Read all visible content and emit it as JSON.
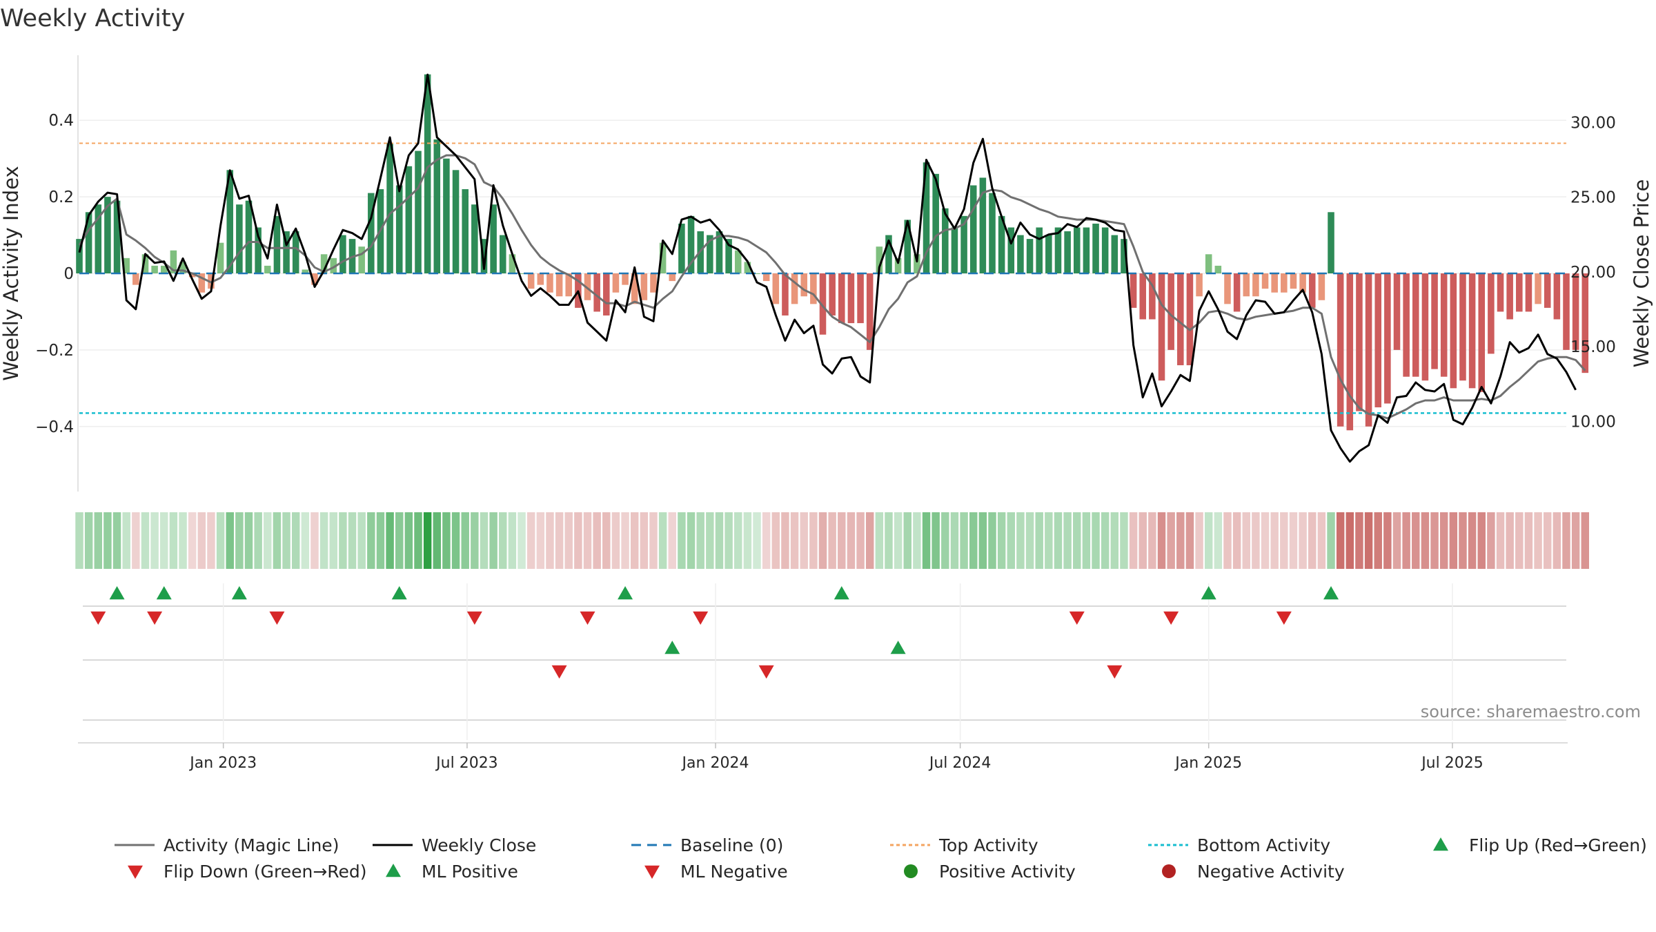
{
  "title": "Weekly Activity",
  "source": "source: sharemaestro.com",
  "colors": {
    "pos_strong": "#2e8b57",
    "pos_light": "#7fbf7f",
    "neg_strong": "#cd5c5c",
    "neg_light": "#e9967a",
    "magic_line": "#707070",
    "close_line": "#000000",
    "baseline": "#1f77b4",
    "top_line": "#f4a460",
    "bottom_line": "#17becf",
    "flip_up": "#1e9e4a",
    "flip_down": "#d62728",
    "pos_dot": "#228b22",
    "neg_dot": "#b22222"
  },
  "chart_data": {
    "type": "bar",
    "title": "Weekly Activity",
    "ylabel": "Weekly Activity Index",
    "y2label": "Weekly Close Price",
    "ylim": [
      -0.57,
      0.57
    ],
    "y2lim": [
      5.3,
      34.5
    ],
    "yticks": [
      -0.4,
      -0.2,
      0,
      0.2,
      0.4
    ],
    "yticklabels": [
      "−0.4",
      "−0.2",
      "0",
      "0.2",
      "0.4"
    ],
    "y2ticks": [
      10,
      15,
      20,
      25,
      30
    ],
    "y2ticklabels": [
      "10.00",
      "15.00",
      "20.00",
      "25.00",
      "30.00"
    ],
    "start_date": "2022-09-26",
    "x_range_weeks": [
      0,
      158
    ],
    "xticks": [
      {
        "label": "Jan 2023",
        "week": 15.3
      },
      {
        "label": "Jul 2023",
        "week": 41.2
      },
      {
        "label": "Jan 2024",
        "week": 67.6
      },
      {
        "label": "Jul 2024",
        "week": 93.6
      },
      {
        "label": "Jan 2025",
        "week": 120
      },
      {
        "label": "Jul 2025",
        "week": 145.9
      }
    ],
    "top_activity": 0.34,
    "bottom_activity": -0.365,
    "activity": [
      0.09,
      0.16,
      0.18,
      0.2,
      0.19,
      0.04,
      -0.03,
      0.05,
      0.02,
      0.02,
      0.06,
      0.03,
      -0.01,
      -0.05,
      -0.04,
      0.08,
      0.27,
      0.18,
      0.19,
      0.12,
      0.02,
      0.15,
      0.11,
      0.11,
      0.01,
      -0.03,
      0.05,
      0.04,
      0.1,
      0.09,
      0.07,
      0.21,
      0.22,
      0.34,
      0.23,
      0.28,
      0.32,
      0.52,
      0.35,
      0.3,
      0.27,
      0.22,
      0.18,
      0.09,
      0.18,
      0.1,
      0.05,
      0.0,
      -0.04,
      -0.03,
      -0.05,
      -0.06,
      -0.06,
      -0.09,
      -0.07,
      -0.1,
      -0.11,
      -0.05,
      -0.03,
      -0.08,
      -0.07,
      -0.05,
      0.08,
      -0.02,
      0.13,
      0.15,
      0.11,
      0.1,
      0.11,
      0.09,
      0.06,
      0.03,
      0.0,
      -0.02,
      -0.08,
      -0.11,
      -0.08,
      -0.06,
      -0.08,
      -0.16,
      -0.11,
      -0.13,
      -0.13,
      -0.13,
      -0.2,
      0.07,
      0.1,
      0.04,
      0.14,
      0.05,
      0.29,
      0.26,
      0.17,
      0.12,
      0.15,
      0.23,
      0.25,
      0.21,
      0.15,
      0.12,
      0.1,
      0.09,
      0.12,
      0.1,
      0.12,
      0.11,
      0.12,
      0.12,
      0.13,
      0.12,
      0.1,
      0.09,
      -0.09,
      -0.12,
      -0.12,
      -0.28,
      -0.2,
      -0.24,
      -0.24,
      -0.06,
      0.05,
      0.02,
      -0.08,
      -0.1,
      -0.06,
      -0.06,
      -0.04,
      -0.05,
      -0.05,
      -0.04,
      -0.05,
      -0.09,
      -0.07,
      0.16,
      -0.4,
      -0.41,
      -0.36,
      -0.4,
      -0.35,
      -0.34,
      -0.2,
      -0.27,
      -0.27,
      -0.28,
      -0.25,
      -0.27,
      -0.3,
      -0.28,
      -0.3,
      -0.31,
      -0.21,
      -0.1,
      -0.12,
      -0.1,
      -0.1,
      -0.08,
      -0.09,
      -0.12,
      -0.2,
      -0.2,
      -0.26
    ],
    "weekly_close": [
      21.3,
      23.8,
      24.7,
      25.3,
      25.2,
      18.1,
      17.5,
      21.2,
      20.6,
      20.7,
      19.4,
      20.9,
      19.5,
      18.2,
      18.7,
      23.1,
      26.8,
      24.9,
      25.1,
      22.4,
      20.9,
      24.5,
      21.8,
      22.9,
      21.2,
      19.0,
      20.1,
      21.5,
      22.8,
      22.6,
      22.2,
      23.6,
      26.3,
      29.0,
      25.4,
      27.8,
      28.6,
      33.2,
      29.0,
      28.4,
      27.8,
      27.0,
      26.2,
      20.2,
      25.8,
      23.1,
      21.2,
      19.4,
      18.4,
      18.9,
      18.4,
      17.8,
      17.8,
      18.7,
      16.6,
      16.0,
      15.4,
      18.1,
      17.3,
      20.3,
      17.0,
      16.7,
      22.1,
      21.2,
      23.5,
      23.7,
      23.3,
      23.5,
      22.8,
      21.8,
      21.5,
      20.7,
      19.3,
      19.0,
      17.1,
      15.4,
      16.8,
      15.9,
      16.4,
      13.8,
      13.2,
      14.2,
      14.3,
      13.0,
      12.6,
      20.3,
      22.1,
      20.6,
      23.4,
      20.7,
      27.5,
      26.2,
      23.9,
      22.9,
      24.2,
      27.3,
      28.9,
      25.6,
      23.7,
      21.9,
      23.3,
      22.5,
      22.2,
      22.5,
      22.6,
      23.2,
      23.0,
      23.6,
      23.5,
      23.3,
      22.8,
      22.7,
      15.1,
      11.6,
      13.2,
      11.0,
      12.0,
      13.1,
      12.7,
      17.4,
      18.7,
      17.5,
      16.0,
      15.5,
      17.1,
      18.1,
      18.0,
      17.2,
      17.3,
      18.1,
      18.8,
      17.3,
      14.5,
      9.4,
      8.2,
      7.3,
      8.0,
      8.4,
      10.4,
      9.9,
      11.6,
      11.7,
      12.6,
      12.1,
      12.0,
      12.5,
      10.1,
      9.8,
      10.9,
      12.3,
      11.2,
      13.0,
      15.3,
      14.6,
      14.9,
      15.8,
      14.5,
      14.2,
      13.3,
      12.1
    ],
    "magic_line": [
      21.8,
      22.8,
      23.6,
      24.4,
      24.9,
      22.5,
      22.1,
      21.6,
      21.0,
      20.6,
      20.1,
      20.1,
      19.9,
      19.6,
      19.3,
      19.6,
      20.4,
      21.3,
      22.0,
      22.0,
      21.6,
      21.6,
      21.6,
      21.6,
      21.1,
      20.3,
      20.0,
      20.3,
      20.7,
      21.0,
      21.2,
      21.7,
      22.8,
      23.9,
      24.4,
      25.0,
      25.6,
      27.0,
      27.5,
      27.8,
      27.8,
      27.6,
      27.2,
      26.0,
      25.7,
      24.9,
      23.9,
      22.8,
      21.8,
      21.0,
      20.5,
      20.1,
      19.8,
      19.4,
      18.9,
      18.4,
      17.9,
      17.9,
      17.7,
      18.0,
      17.8,
      17.6,
      18.2,
      18.7,
      19.7,
      20.6,
      21.4,
      22.1,
      22.4,
      22.4,
      22.3,
      22.1,
      21.7,
      21.3,
      20.6,
      19.8,
      19.3,
      18.8,
      18.5,
      17.7,
      17.0,
      16.6,
      16.3,
      15.8,
      15.3,
      16.3,
      17.5,
      18.2,
      19.3,
      19.7,
      21.3,
      22.4,
      22.8,
      22.9,
      23.2,
      24.2,
      25.3,
      25.5,
      25.4,
      25.0,
      24.8,
      24.5,
      24.2,
      24.0,
      23.7,
      23.6,
      23.5,
      23.5,
      23.5,
      23.4,
      23.3,
      23.2,
      21.7,
      20.0,
      19.1,
      17.8,
      17.1,
      16.6,
      16.1,
      16.6,
      17.3,
      17.4,
      17.2,
      16.9,
      16.8,
      17.0,
      17.1,
      17.2,
      17.3,
      17.4,
      17.6,
      17.6,
      17.2,
      14.3,
      12.8,
      11.7,
      10.9,
      10.5,
      10.4,
      10.2,
      10.5,
      10.8,
      11.2,
      11.4,
      11.4,
      11.6,
      11.4,
      11.4,
      11.4,
      11.5,
      11.4,
      11.7,
      12.3,
      12.8,
      13.4,
      14.0,
      14.2,
      14.3,
      14.3,
      14.1,
      13.4
    ],
    "flip_up": [
      4,
      9,
      17,
      34,
      58,
      81,
      120,
      133
    ],
    "flip_down": [
      2,
      8,
      21,
      42,
      54,
      66,
      106,
      116,
      128
    ],
    "ml_positive": [
      63,
      87
    ],
    "ml_negative": [
      51,
      73,
      110
    ],
    "positive_activity": [],
    "negative_activity": [],
    "legend": [
      {
        "label": "Activity (Magic Line)",
        "kind": "line",
        "color": "#707070",
        "dash": ""
      },
      {
        "label": "Weekly Close",
        "kind": "line",
        "color": "#000000",
        "dash": ""
      },
      {
        "label": "Baseline (0)",
        "kind": "line",
        "color": "#1f77b4",
        "dash": "14 9"
      },
      {
        "label": "Top Activity",
        "kind": "line",
        "color": "#f4a460",
        "dash": "5 4"
      },
      {
        "label": "Bottom Activity",
        "kind": "line",
        "color": "#17becf",
        "dash": "5 4"
      },
      {
        "label": "Flip Up (Red→Green)",
        "kind": "tri-up",
        "color": "#1e9e4a"
      },
      {
        "label": "Flip Down (Green→Red)",
        "kind": "tri-down",
        "color": "#d62728"
      },
      {
        "label": "ML Positive",
        "kind": "tri-up",
        "color": "#1e9e4a"
      },
      {
        "label": "ML Negative",
        "kind": "tri-down",
        "color": "#d62728"
      },
      {
        "label": "Positive Activity",
        "kind": "dot",
        "color": "#228b22"
      },
      {
        "label": "Negative Activity",
        "kind": "dot",
        "color": "#b22222"
      }
    ]
  }
}
